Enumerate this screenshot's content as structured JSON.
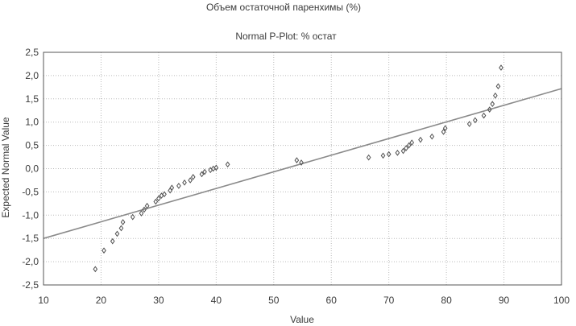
{
  "chart_data": {
    "type": "scatter",
    "title": "Объем остаточной паренхимы (%)",
    "subtitle": "Normal P-Plot: % остат",
    "xlabel": "Value",
    "ylabel": "Expected Normal Value",
    "xlim": [
      10,
      100
    ],
    "ylim": [
      -2.5,
      2.5
    ],
    "x_ticks": [
      "10",
      "20",
      "30",
      "40",
      "50",
      "60",
      "70",
      "80",
      "90",
      "100"
    ],
    "y_ticks": [
      "2,5",
      "2,0",
      "1,5",
      "1,0",
      "0,5",
      "0,0",
      "-0,5",
      "-1,0",
      "-1,5",
      "-2,0",
      "-2,5"
    ],
    "x_tick_values": [
      10,
      20,
      30,
      40,
      50,
      60,
      70,
      80,
      90,
      100
    ],
    "y_tick_values": [
      2.5,
      2.0,
      1.5,
      1.0,
      0.5,
      0.0,
      -0.5,
      -1.0,
      -1.5,
      -2.0,
      -2.5
    ],
    "grid": true,
    "points": [
      [
        19.0,
        -2.16
      ],
      [
        20.5,
        -1.76
      ],
      [
        22.0,
        -1.56
      ],
      [
        22.8,
        -1.4
      ],
      [
        23.5,
        -1.28
      ],
      [
        23.8,
        -1.15
      ],
      [
        25.5,
        -1.04
      ],
      [
        27.0,
        -0.96
      ],
      [
        27.5,
        -0.88
      ],
      [
        28.0,
        -0.8
      ],
      [
        29.5,
        -0.71
      ],
      [
        30.0,
        -0.64
      ],
      [
        30.5,
        -0.58
      ],
      [
        31.0,
        -0.55
      ],
      [
        32.0,
        -0.47
      ],
      [
        32.3,
        -0.41
      ],
      [
        33.5,
        -0.37
      ],
      [
        34.5,
        -0.3
      ],
      [
        35.5,
        -0.25
      ],
      [
        36.0,
        -0.18
      ],
      [
        37.5,
        -0.12
      ],
      [
        38.0,
        -0.07
      ],
      [
        39.0,
        -0.03
      ],
      [
        39.5,
        0.0
      ],
      [
        40.0,
        0.02
      ],
      [
        42.0,
        0.09
      ],
      [
        54.0,
        0.18
      ],
      [
        54.8,
        0.13
      ],
      [
        66.5,
        0.24
      ],
      [
        69.0,
        0.28
      ],
      [
        70.0,
        0.31
      ],
      [
        71.5,
        0.34
      ],
      [
        72.5,
        0.38
      ],
      [
        73.0,
        0.44
      ],
      [
        73.5,
        0.5
      ],
      [
        74.0,
        0.56
      ],
      [
        75.5,
        0.62
      ],
      [
        77.5,
        0.69
      ],
      [
        79.5,
        0.79
      ],
      [
        79.8,
        0.87
      ],
      [
        84.0,
        0.96
      ],
      [
        85.0,
        1.04
      ],
      [
        86.5,
        1.14
      ],
      [
        87.5,
        1.27
      ],
      [
        88.0,
        1.39
      ],
      [
        88.5,
        1.57
      ],
      [
        89.0,
        1.77
      ],
      [
        89.5,
        2.17
      ]
    ],
    "fit_line": {
      "x": [
        10,
        100
      ],
      "y": [
        -1.5,
        1.72
      ]
    },
    "colors": {
      "points": "#505050",
      "line": "#8a8a8a",
      "grid": "#bbbbbb",
      "frame": "#555555"
    }
  }
}
